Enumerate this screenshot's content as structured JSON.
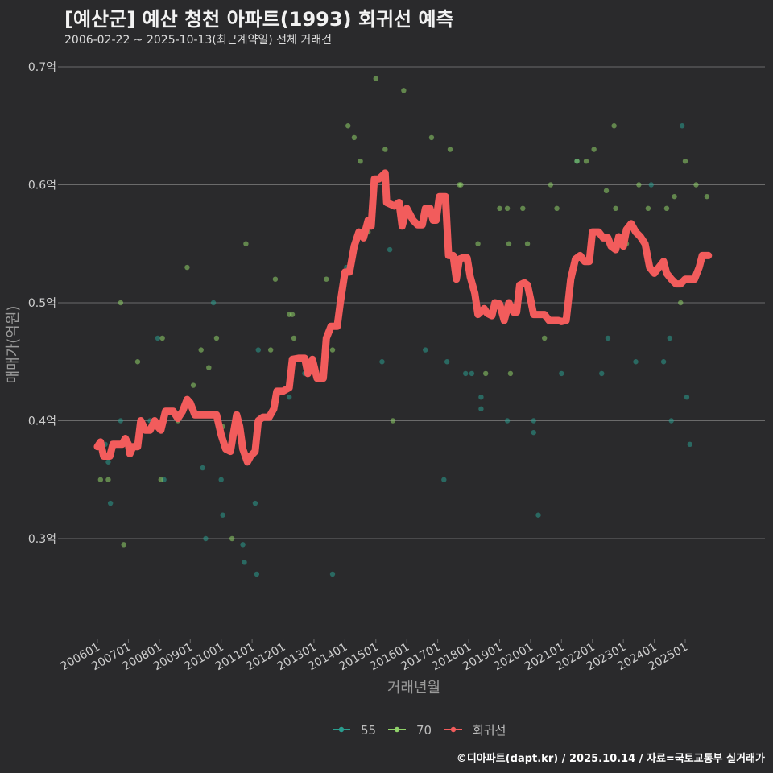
{
  "title": "[예산군] 예산 청천 아파트(1993) 회귀선 예측",
  "subtitle": "2006-02-22 ~ 2025-10-13(최근계약일) 전체 거래건",
  "credit": "©디아파트(dapt.kr) / 2025.10.14 / 자료=국토교통부 실거래가",
  "colors": {
    "s55": "#2a9d8f",
    "s70": "#8fd16a",
    "trend": "#f25c5c",
    "grid": "#6b6b6b",
    "bg": "#2a2a2c"
  },
  "chart_data": {
    "type": "scatter",
    "xlabel": "거래년월",
    "ylabel": "매매가(억원)",
    "ylim": [
      0.22,
      0.71
    ],
    "xlim": [
      2006.0,
      2025.9
    ],
    "x_ticks": [
      {
        "x": 2006.0,
        "label": "200601"
      },
      {
        "x": 2007.0,
        "label": "200701"
      },
      {
        "x": 2008.0,
        "label": "200801"
      },
      {
        "x": 2009.0,
        "label": "200901"
      },
      {
        "x": 2010.0,
        "label": "201001"
      },
      {
        "x": 2011.0,
        "label": "201101"
      },
      {
        "x": 2012.0,
        "label": "201201"
      },
      {
        "x": 2013.0,
        "label": "201301"
      },
      {
        "x": 2014.0,
        "label": "201401"
      },
      {
        "x": 2015.0,
        "label": "201501"
      },
      {
        "x": 2016.0,
        "label": "201601"
      },
      {
        "x": 2017.0,
        "label": "201701"
      },
      {
        "x": 2018.0,
        "label": "201801"
      },
      {
        "x": 2019.0,
        "label": "201901"
      },
      {
        "x": 2020.0,
        "label": "202001"
      },
      {
        "x": 2021.0,
        "label": "202101"
      },
      {
        "x": 2022.0,
        "label": "202201"
      },
      {
        "x": 2023.0,
        "label": "202301"
      },
      {
        "x": 2024.0,
        "label": "202401"
      },
      {
        "x": 2025.0,
        "label": "202501"
      }
    ],
    "y_ticks": [
      {
        "y": 0.3,
        "label": "0.3억"
      },
      {
        "y": 0.4,
        "label": "0.4억"
      },
      {
        "y": 0.5,
        "label": "0.5억"
      },
      {
        "y": 0.6,
        "label": "0.6억"
      },
      {
        "y": 0.7,
        "label": "0.7억"
      }
    ],
    "legend": {
      "position": "bottom",
      "items": [
        {
          "key": "s55",
          "label": "55"
        },
        {
          "key": "s70",
          "label": "70"
        },
        {
          "key": "trend",
          "label": "회귀선"
        }
      ]
    },
    "series": [
      {
        "name": "55",
        "key": "s55",
        "kind": "points",
        "points": [
          [
            2006.25,
            0.38
          ],
          [
            2006.35,
            0.365
          ],
          [
            2006.42,
            0.33
          ],
          [
            2006.75,
            0.4
          ],
          [
            2007.7,
            0.4
          ],
          [
            2007.95,
            0.47
          ],
          [
            2008.15,
            0.35
          ],
          [
            2009.4,
            0.36
          ],
          [
            2009.5,
            0.3
          ],
          [
            2009.75,
            0.5
          ],
          [
            2010.0,
            0.35
          ],
          [
            2010.05,
            0.32
          ],
          [
            2010.7,
            0.295
          ],
          [
            2010.75,
            0.28
          ],
          [
            2011.1,
            0.33
          ],
          [
            2011.15,
            0.27
          ],
          [
            2011.2,
            0.46
          ],
          [
            2012.2,
            0.42
          ],
          [
            2012.7,
            0.44
          ],
          [
            2013.6,
            0.27
          ],
          [
            2014.05,
            0.53
          ],
          [
            2015.2,
            0.45
          ],
          [
            2015.45,
            0.545
          ],
          [
            2016.6,
            0.46
          ],
          [
            2017.2,
            0.35
          ],
          [
            2017.3,
            0.45
          ],
          [
            2017.9,
            0.44
          ],
          [
            2018.1,
            0.44
          ],
          [
            2018.4,
            0.42
          ],
          [
            2018.4,
            0.41
          ],
          [
            2019.25,
            0.4
          ],
          [
            2020.1,
            0.4
          ],
          [
            2020.1,
            0.39
          ],
          [
            2020.25,
            0.32
          ],
          [
            2021.0,
            0.44
          ],
          [
            2021.5,
            0.62
          ],
          [
            2022.3,
            0.44
          ],
          [
            2022.5,
            0.47
          ],
          [
            2023.4,
            0.45
          ],
          [
            2023.9,
            0.6
          ],
          [
            2024.3,
            0.45
          ],
          [
            2024.5,
            0.47
          ],
          [
            2024.55,
            0.4
          ],
          [
            2024.9,
            0.65
          ],
          [
            2025.05,
            0.42
          ],
          [
            2025.15,
            0.38
          ]
        ]
      },
      {
        "name": "70",
        "key": "s70",
        "kind": "points",
        "points": [
          [
            2006.1,
            0.35
          ],
          [
            2006.35,
            0.35
          ],
          [
            2006.75,
            0.5
          ],
          [
            2006.85,
            0.295
          ],
          [
            2007.3,
            0.45
          ],
          [
            2007.85,
            0.4
          ],
          [
            2008.05,
            0.35
          ],
          [
            2008.1,
            0.47
          ],
          [
            2008.6,
            0.4
          ],
          [
            2008.9,
            0.53
          ],
          [
            2009.1,
            0.43
          ],
          [
            2009.35,
            0.46
          ],
          [
            2009.6,
            0.445
          ],
          [
            2009.85,
            0.47
          ],
          [
            2010.05,
            0.395
          ],
          [
            2010.35,
            0.3
          ],
          [
            2010.8,
            0.55
          ],
          [
            2011.6,
            0.46
          ],
          [
            2011.75,
            0.52
          ],
          [
            2012.2,
            0.49
          ],
          [
            2012.3,
            0.49
          ],
          [
            2012.35,
            0.47
          ],
          [
            2013.4,
            0.52
          ],
          [
            2013.6,
            0.46
          ],
          [
            2014.1,
            0.65
          ],
          [
            2014.3,
            0.64
          ],
          [
            2014.5,
            0.62
          ],
          [
            2014.75,
            0.56
          ],
          [
            2015.0,
            0.69
          ],
          [
            2015.3,
            0.63
          ],
          [
            2015.55,
            0.4
          ],
          [
            2015.9,
            0.68
          ],
          [
            2016.8,
            0.64
          ],
          [
            2017.4,
            0.63
          ],
          [
            2017.7,
            0.6
          ],
          [
            2017.75,
            0.6
          ],
          [
            2018.3,
            0.55
          ],
          [
            2018.55,
            0.44
          ],
          [
            2019.0,
            0.58
          ],
          [
            2019.25,
            0.58
          ],
          [
            2019.3,
            0.55
          ],
          [
            2019.35,
            0.44
          ],
          [
            2019.75,
            0.58
          ],
          [
            2019.9,
            0.55
          ],
          [
            2020.45,
            0.47
          ],
          [
            2020.65,
            0.6
          ],
          [
            2020.85,
            0.58
          ],
          [
            2021.5,
            0.62
          ],
          [
            2021.8,
            0.62
          ],
          [
            2022.05,
            0.63
          ],
          [
            2022.45,
            0.595
          ],
          [
            2022.7,
            0.65
          ],
          [
            2022.75,
            0.58
          ],
          [
            2023.05,
            0.55
          ],
          [
            2023.1,
            0.55
          ],
          [
            2023.5,
            0.6
          ],
          [
            2023.8,
            0.58
          ],
          [
            2024.4,
            0.58
          ],
          [
            2024.65,
            0.59
          ],
          [
            2024.85,
            0.5
          ],
          [
            2025.0,
            0.62
          ],
          [
            2025.35,
            0.6
          ],
          [
            2025.7,
            0.59
          ]
        ]
      },
      {
        "name": "회귀선",
        "key": "trend",
        "kind": "line",
        "points": [
          [
            2006.0,
            0.378
          ],
          [
            2006.1,
            0.382
          ],
          [
            2006.2,
            0.37
          ],
          [
            2006.4,
            0.37
          ],
          [
            2006.5,
            0.38
          ],
          [
            2006.8,
            0.38
          ],
          [
            2006.9,
            0.385
          ],
          [
            2007.0,
            0.38
          ],
          [
            2007.05,
            0.372
          ],
          [
            2007.15,
            0.378
          ],
          [
            2007.3,
            0.378
          ],
          [
            2007.4,
            0.4
          ],
          [
            2007.55,
            0.392
          ],
          [
            2007.7,
            0.392
          ],
          [
            2007.85,
            0.4
          ],
          [
            2007.95,
            0.395
          ],
          [
            2008.05,
            0.392
          ],
          [
            2008.2,
            0.408
          ],
          [
            2008.45,
            0.408
          ],
          [
            2008.6,
            0.402
          ],
          [
            2008.75,
            0.408
          ],
          [
            2008.9,
            0.418
          ],
          [
            2009.0,
            0.415
          ],
          [
            2009.15,
            0.405
          ],
          [
            2009.3,
            0.405
          ],
          [
            2009.5,
            0.405
          ],
          [
            2009.7,
            0.405
          ],
          [
            2009.85,
            0.405
          ],
          [
            2010.0,
            0.388
          ],
          [
            2010.15,
            0.376
          ],
          [
            2010.3,
            0.374
          ],
          [
            2010.4,
            0.39
          ],
          [
            2010.5,
            0.405
          ],
          [
            2010.6,
            0.395
          ],
          [
            2010.7,
            0.376
          ],
          [
            2010.85,
            0.365
          ],
          [
            2010.95,
            0.37
          ],
          [
            2011.1,
            0.374
          ],
          [
            2011.2,
            0.4
          ],
          [
            2011.35,
            0.403
          ],
          [
            2011.55,
            0.403
          ],
          [
            2011.7,
            0.41
          ],
          [
            2011.8,
            0.425
          ],
          [
            2012.0,
            0.425
          ],
          [
            2012.2,
            0.428
          ],
          [
            2012.3,
            0.452
          ],
          [
            2012.5,
            0.453
          ],
          [
            2012.7,
            0.453
          ],
          [
            2012.8,
            0.44
          ],
          [
            2012.95,
            0.452
          ],
          [
            2013.1,
            0.436
          ],
          [
            2013.3,
            0.436
          ],
          [
            2013.4,
            0.47
          ],
          [
            2013.55,
            0.48
          ],
          [
            2013.75,
            0.48
          ],
          [
            2013.85,
            0.5
          ],
          [
            2014.0,
            0.526
          ],
          [
            2014.15,
            0.526
          ],
          [
            2014.3,
            0.548
          ],
          [
            2014.45,
            0.56
          ],
          [
            2014.6,
            0.555
          ],
          [
            2014.75,
            0.57
          ],
          [
            2014.85,
            0.565
          ],
          [
            2014.95,
            0.605
          ],
          [
            2015.1,
            0.605
          ],
          [
            2015.3,
            0.61
          ],
          [
            2015.35,
            0.585
          ],
          [
            2015.6,
            0.582
          ],
          [
            2015.75,
            0.585
          ],
          [
            2015.85,
            0.565
          ],
          [
            2016.0,
            0.58
          ],
          [
            2016.2,
            0.57
          ],
          [
            2016.35,
            0.566
          ],
          [
            2016.5,
            0.566
          ],
          [
            2016.6,
            0.58
          ],
          [
            2016.75,
            0.58
          ],
          [
            2016.85,
            0.57
          ],
          [
            2016.95,
            0.57
          ],
          [
            2017.05,
            0.59
          ],
          [
            2017.25,
            0.59
          ],
          [
            2017.35,
            0.54
          ],
          [
            2017.5,
            0.54
          ],
          [
            2017.6,
            0.52
          ],
          [
            2017.7,
            0.537
          ],
          [
            2017.8,
            0.538
          ],
          [
            2017.95,
            0.538
          ],
          [
            2018.05,
            0.522
          ],
          [
            2018.2,
            0.508
          ],
          [
            2018.3,
            0.49
          ],
          [
            2018.5,
            0.495
          ],
          [
            2018.6,
            0.491
          ],
          [
            2018.75,
            0.489
          ],
          [
            2018.85,
            0.5
          ],
          [
            2019.0,
            0.499
          ],
          [
            2019.15,
            0.485
          ],
          [
            2019.3,
            0.5
          ],
          [
            2019.45,
            0.492
          ],
          [
            2019.55,
            0.492
          ],
          [
            2019.65,
            0.515
          ],
          [
            2019.8,
            0.517
          ],
          [
            2019.9,
            0.515
          ],
          [
            2020.0,
            0.503
          ],
          [
            2020.1,
            0.49
          ],
          [
            2020.3,
            0.49
          ],
          [
            2020.45,
            0.49
          ],
          [
            2020.6,
            0.485
          ],
          [
            2020.75,
            0.485
          ],
          [
            2020.9,
            0.485
          ],
          [
            2021.0,
            0.484
          ],
          [
            2021.15,
            0.485
          ],
          [
            2021.3,
            0.52
          ],
          [
            2021.45,
            0.537
          ],
          [
            2021.6,
            0.54
          ],
          [
            2021.75,
            0.535
          ],
          [
            2021.9,
            0.535
          ],
          [
            2022.0,
            0.56
          ],
          [
            2022.2,
            0.56
          ],
          [
            2022.35,
            0.555
          ],
          [
            2022.5,
            0.555
          ],
          [
            2022.6,
            0.548
          ],
          [
            2022.75,
            0.545
          ],
          [
            2022.85,
            0.556
          ],
          [
            2023.0,
            0.548
          ],
          [
            2023.1,
            0.562
          ],
          [
            2023.25,
            0.567
          ],
          [
            2023.4,
            0.56
          ],
          [
            2023.55,
            0.556
          ],
          [
            2023.7,
            0.55
          ],
          [
            2023.85,
            0.53
          ],
          [
            2024.0,
            0.525
          ],
          [
            2024.15,
            0.53
          ],
          [
            2024.3,
            0.535
          ],
          [
            2024.4,
            0.525
          ],
          [
            2024.55,
            0.52
          ],
          [
            2024.7,
            0.516
          ],
          [
            2024.85,
            0.516
          ],
          [
            2025.0,
            0.52
          ],
          [
            2025.15,
            0.52
          ],
          [
            2025.3,
            0.52
          ],
          [
            2025.45,
            0.53
          ],
          [
            2025.55,
            0.54
          ],
          [
            2025.75,
            0.54
          ]
        ]
      }
    ]
  }
}
